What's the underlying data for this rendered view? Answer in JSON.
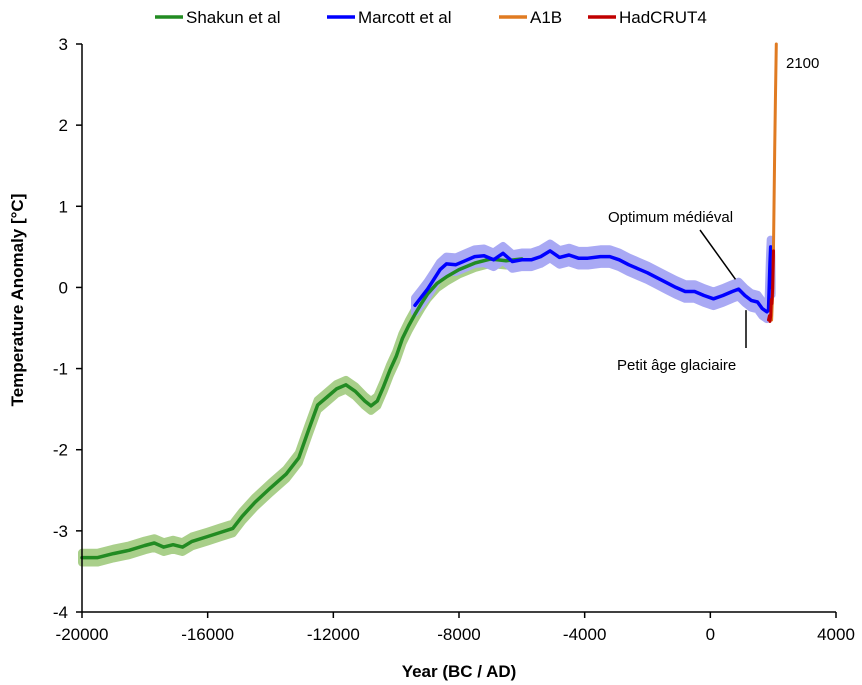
{
  "chart_data": {
    "type": "line",
    "title": "",
    "xlabel": "Year (BC / AD)",
    "ylabel": "Temperature Anomaly [°C]",
    "xlim": [
      -20000,
      4000
    ],
    "ylim": [
      -4,
      3
    ],
    "x_ticks": [
      -20000,
      -16000,
      -12000,
      -8000,
      -4000,
      0,
      4000
    ],
    "y_ticks": [
      -4,
      -3,
      -2,
      -1,
      0,
      1,
      2,
      3
    ],
    "x_tick_labels": [
      "-20000",
      "-16000",
      "-12000",
      "-8000",
      "-4000",
      "0",
      "4000"
    ],
    "y_tick_labels": [
      "-4",
      "-3",
      "-2",
      "-1",
      "0",
      "1",
      "2",
      "3"
    ],
    "grid": false,
    "legend": "top",
    "series": [
      {
        "name": "Shakun et al",
        "color": "#228B22",
        "band_color": "#a9cf8a",
        "band_halfwidth": 0.06,
        "points": [
          [
            -20000,
            -3.33
          ],
          [
            -19500,
            -3.33
          ],
          [
            -19000,
            -3.28
          ],
          [
            -18500,
            -3.24
          ],
          [
            -18000,
            -3.18
          ],
          [
            -17700,
            -3.15
          ],
          [
            -17400,
            -3.2
          ],
          [
            -17100,
            -3.17
          ],
          [
            -16800,
            -3.2
          ],
          [
            -16500,
            -3.13
          ],
          [
            -16000,
            -3.07
          ],
          [
            -15600,
            -3.02
          ],
          [
            -15200,
            -2.97
          ],
          [
            -14900,
            -2.82
          ],
          [
            -14500,
            -2.65
          ],
          [
            -14000,
            -2.47
          ],
          [
            -13500,
            -2.3
          ],
          [
            -13100,
            -2.1
          ],
          [
            -12800,
            -1.77
          ],
          [
            -12500,
            -1.45
          ],
          [
            -12200,
            -1.35
          ],
          [
            -11900,
            -1.25
          ],
          [
            -11600,
            -1.2
          ],
          [
            -11300,
            -1.28
          ],
          [
            -11000,
            -1.4
          ],
          [
            -10800,
            -1.46
          ],
          [
            -10600,
            -1.4
          ],
          [
            -10400,
            -1.22
          ],
          [
            -10200,
            -1.02
          ],
          [
            -10000,
            -0.85
          ],
          [
            -9800,
            -0.63
          ],
          [
            -9600,
            -0.47
          ],
          [
            -9400,
            -0.33
          ],
          [
            -9200,
            -0.2
          ],
          [
            -9000,
            -0.08
          ],
          [
            -8700,
            0.05
          ],
          [
            -8400,
            0.13
          ],
          [
            -8000,
            0.22
          ],
          [
            -7500,
            0.3
          ],
          [
            -7000,
            0.35
          ],
          [
            -6500,
            0.33
          ],
          [
            -6000,
            0.35
          ]
        ]
      },
      {
        "name": "Marcott et al",
        "color": "#0000ff",
        "band_color": "#a9a9f4",
        "band_halfwidth": 0.09,
        "points": [
          [
            -9400,
            -0.22
          ],
          [
            -9200,
            -0.12
          ],
          [
            -9000,
            -0.02
          ],
          [
            -8800,
            0.1
          ],
          [
            -8600,
            0.22
          ],
          [
            -8400,
            0.29
          ],
          [
            -8100,
            0.28
          ],
          [
            -7800,
            0.33
          ],
          [
            -7500,
            0.38
          ],
          [
            -7200,
            0.39
          ],
          [
            -6900,
            0.34
          ],
          [
            -6600,
            0.42
          ],
          [
            -6300,
            0.32
          ],
          [
            -6000,
            0.34
          ],
          [
            -5700,
            0.34
          ],
          [
            -5400,
            0.38
          ],
          [
            -5100,
            0.45
          ],
          [
            -4800,
            0.37
          ],
          [
            -4500,
            0.4
          ],
          [
            -4200,
            0.36
          ],
          [
            -3900,
            0.36
          ],
          [
            -3500,
            0.38
          ],
          [
            -3200,
            0.38
          ],
          [
            -2900,
            0.34
          ],
          [
            -2600,
            0.28
          ],
          [
            -2300,
            0.23
          ],
          [
            -2000,
            0.18
          ],
          [
            -1700,
            0.12
          ],
          [
            -1400,
            0.06
          ],
          [
            -1100,
            0.0
          ],
          [
            -800,
            -0.05
          ],
          [
            -500,
            -0.05
          ],
          [
            -200,
            -0.1
          ],
          [
            100,
            -0.14
          ],
          [
            400,
            -0.1
          ],
          [
            700,
            -0.05
          ],
          [
            900,
            -0.02
          ],
          [
            1100,
            -0.1
          ],
          [
            1300,
            -0.16
          ],
          [
            1500,
            -0.18
          ],
          [
            1650,
            -0.26
          ],
          [
            1800,
            -0.3
          ],
          [
            1850,
            -0.28
          ],
          [
            1900,
            0.3
          ],
          [
            1920,
            0.5
          ],
          [
            1940,
            0.3
          ],
          [
            1950,
            0.0
          ]
        ]
      },
      {
        "name": "A1B",
        "color": "#e07b22",
        "points": [
          [
            1950,
            -0.4
          ],
          [
            1990,
            0.0
          ],
          [
            2010,
            0.5
          ],
          [
            2030,
            1.1
          ],
          [
            2050,
            1.7
          ],
          [
            2070,
            2.3
          ],
          [
            2100,
            3.0
          ]
        ]
      },
      {
        "name": "HadCRUT4",
        "color": "#c00000",
        "points": [
          [
            1850,
            -0.4
          ],
          [
            1880,
            -0.35
          ],
          [
            1900,
            -0.42
          ],
          [
            1920,
            -0.35
          ],
          [
            1940,
            -0.15
          ],
          [
            1960,
            -0.2
          ],
          [
            1980,
            -0.05
          ],
          [
            2000,
            0.3
          ],
          [
            2010,
            0.45
          ]
        ]
      }
    ],
    "annotations": [
      {
        "text": "Optimum médiéval",
        "point": [
          1000,
          0.0
        ]
      },
      {
        "text": "Petit âge glaciaire",
        "point": [
          1500,
          -0.3
        ]
      },
      {
        "text": "2100",
        "point": [
          2100,
          3.0
        ]
      }
    ]
  }
}
